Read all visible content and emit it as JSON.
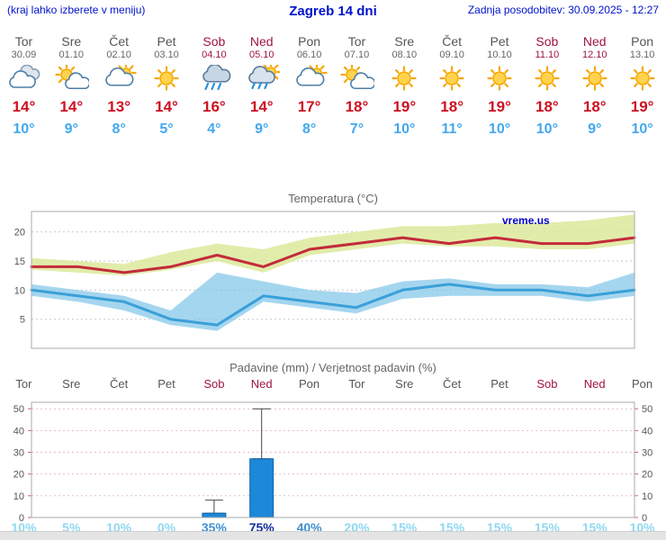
{
  "header": {
    "note": "(kraj lahko izberete v meniju)",
    "title": "Zagreb 14 dni",
    "updated": "Zadnja posodobitev: 30.09.2025 - 12:27"
  },
  "palette": {
    "header_blue": "#0011cc",
    "weekend_red": "#a01245",
    "high_temp_red": "#cc1122",
    "low_temp_blue": "#42a9ee",
    "prob_low": "#8fd8f0",
    "prob_mid": "#3f8fd2",
    "prob_high": "#12309e"
  },
  "forecast": {
    "days": [
      {
        "name": "Tor",
        "date": "30.09",
        "weekend": false,
        "icon": "cloudy",
        "high": "14°",
        "low": "10°"
      },
      {
        "name": "Sre",
        "date": "01.10",
        "weekend": false,
        "icon": "partly-cloudy",
        "high": "14°",
        "low": "9°"
      },
      {
        "name": "Čet",
        "date": "02.10",
        "weekend": false,
        "icon": "mostly-cloudy",
        "high": "13°",
        "low": "8°"
      },
      {
        "name": "Pet",
        "date": "03.10",
        "weekend": false,
        "icon": "sunny",
        "high": "14°",
        "low": "5°"
      },
      {
        "name": "Sob",
        "date": "04.10",
        "weekend": true,
        "icon": "rain",
        "high": "16°",
        "low": "4°"
      },
      {
        "name": "Ned",
        "date": "05.10",
        "weekend": true,
        "icon": "sun-rain",
        "high": "14°",
        "low": "9°"
      },
      {
        "name": "Pon",
        "date": "06.10",
        "weekend": false,
        "icon": "mostly-cloudy",
        "high": "17°",
        "low": "8°"
      },
      {
        "name": "Tor",
        "date": "07.10",
        "weekend": false,
        "icon": "partly-cloudy",
        "high": "18°",
        "low": "7°"
      },
      {
        "name": "Sre",
        "date": "08.10",
        "weekend": false,
        "icon": "sunny",
        "high": "19°",
        "low": "10°"
      },
      {
        "name": "Čet",
        "date": "09.10",
        "weekend": false,
        "icon": "sunny",
        "high": "18°",
        "low": "11°"
      },
      {
        "name": "Pet",
        "date": "10.10",
        "weekend": false,
        "icon": "sunny",
        "high": "19°",
        "low": "10°"
      },
      {
        "name": "Sob",
        "date": "11.10",
        "weekend": true,
        "icon": "sunny",
        "high": "18°",
        "low": "10°"
      },
      {
        "name": "Ned",
        "date": "12.10",
        "weekend": true,
        "icon": "sunny",
        "high": "18°",
        "low": "9°"
      },
      {
        "name": "Pon",
        "date": "13.10",
        "weekend": false,
        "icon": "sunny",
        "high": "19°",
        "low": "10°"
      }
    ]
  },
  "chart_data": [
    {
      "type": "line",
      "title": "Temperatura (°C)",
      "watermark": "vreme.us",
      "x": [
        "Tor",
        "Sre",
        "Čet",
        "Pet",
        "Sob",
        "Ned",
        "Pon",
        "Tor",
        "Sre",
        "Čet",
        "Pet",
        "Sob",
        "Ned",
        "Pon"
      ],
      "ylim": [
        0,
        23.5
      ],
      "yticks": [
        5,
        10,
        15,
        20
      ],
      "grid": true,
      "legend": "none",
      "colors": {
        "max_band": "#dbe795",
        "min_band": "#7fc4e8"
      },
      "series": [
        {
          "name": "temp_max",
          "color": "#c32b3a",
          "values": [
            14,
            14,
            13,
            14,
            16,
            14,
            17,
            18,
            19,
            18,
            19,
            18,
            18,
            19
          ]
        },
        {
          "name": "temp_min",
          "color": "#3aa0d8",
          "values": [
            10,
            9,
            8,
            5,
            4,
            9,
            8,
            7,
            10,
            11,
            10,
            10,
            9,
            10
          ]
        },
        {
          "name": "temp_max_band_upper",
          "values": [
            15.5,
            15,
            14.5,
            16.5,
            18,
            17,
            19,
            20,
            21,
            21,
            21.5,
            21.5,
            22,
            23
          ]
        },
        {
          "name": "temp_max_band_lower",
          "values": [
            13.5,
            13,
            12.5,
            13.5,
            15,
            13,
            16,
            17,
            18,
            17.5,
            17.5,
            17,
            17,
            18
          ]
        },
        {
          "name": "temp_min_band_upper",
          "values": [
            11,
            10,
            9,
            6.5,
            13,
            11.5,
            10,
            9.5,
            11.5,
            12,
            11,
            11,
            10.5,
            13
          ]
        },
        {
          "name": "temp_min_band_lower",
          "values": [
            9,
            8,
            6.5,
            4,
            3,
            8,
            7,
            6,
            8.5,
            9,
            9,
            9,
            8,
            9
          ]
        }
      ]
    },
    {
      "type": "bar",
      "title": "Padavine (mm) / Verjetnost padavin (%)",
      "categories": [
        "Tor",
        "Sre",
        "Čet",
        "Pet",
        "Sob",
        "Ned",
        "Pon",
        "Tor",
        "Sre",
        "Čet",
        "Pet",
        "Sob",
        "Ned",
        "Pon"
      ],
      "weekend_flags": [
        false,
        false,
        false,
        false,
        true,
        true,
        false,
        false,
        false,
        false,
        false,
        true,
        true,
        false
      ],
      "values_mm": [
        0,
        0,
        0,
        0,
        2,
        27,
        0,
        0,
        0,
        0,
        0,
        0,
        0,
        0
      ],
      "whisker_max_mm": [
        0,
        0,
        0,
        0,
        8,
        50,
        0,
        0,
        0,
        0,
        0,
        0,
        0,
        0
      ],
      "probabilities": [
        "10%",
        "5%",
        "10%",
        "0%",
        "35%",
        "75%",
        "40%",
        "20%",
        "15%",
        "15%",
        "15%",
        "15%",
        "15%",
        "10%"
      ],
      "ylim": [
        0,
        53
      ],
      "yticks": [
        0,
        10,
        20,
        30,
        40,
        50
      ],
      "bar_color": "#1e88d8",
      "grid": true
    }
  ]
}
